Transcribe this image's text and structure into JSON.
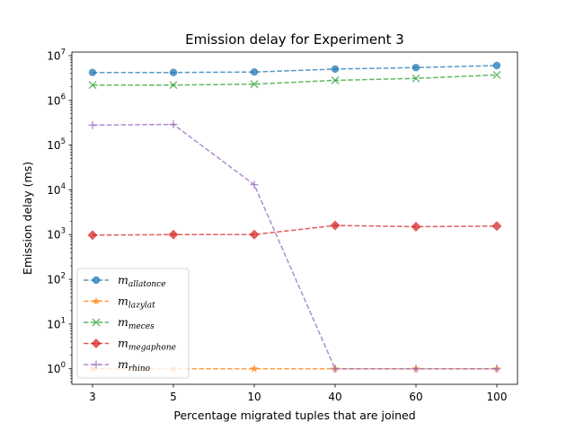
{
  "chart_data": {
    "type": "line",
    "title": "Emission delay for Experiment 3",
    "xlabel": "Percentage migrated tuples that are joined",
    "ylabel": "Emission delay (ms)",
    "categories": [
      "3",
      "5",
      "10",
      "40",
      "60",
      "100"
    ],
    "y_scale": "log",
    "ylim": [
      0.45,
      12000000
    ],
    "y_ticks": [
      {
        "value": 1,
        "base": "10",
        "exp": "0"
      },
      {
        "value": 10,
        "base": "10",
        "exp": "1"
      },
      {
        "value": 100,
        "base": "10",
        "exp": "2"
      },
      {
        "value": 1000,
        "base": "10",
        "exp": "3"
      },
      {
        "value": 10000,
        "base": "10",
        "exp": "4"
      },
      {
        "value": 100000,
        "base": "10",
        "exp": "5"
      },
      {
        "value": 1000000,
        "base": "10",
        "exp": "6"
      },
      {
        "value": 10000000,
        "base": "10",
        "exp": "7"
      }
    ],
    "grid": false,
    "legend_position": "lower-left",
    "series": [
      {
        "name": "m_allatonce",
        "label_main": "m",
        "label_sub": "allatonce",
        "color": "#1f77b4",
        "marker": "circle",
        "values": [
          4200000,
          4200000,
          4300000,
          5000000,
          5400000,
          6000000
        ]
      },
      {
        "name": "m_lazylat",
        "label_main": "m",
        "label_sub": "lazylat",
        "color": "#ff7f0e",
        "marker": "star",
        "values": [
          1,
          1,
          1,
          1,
          1,
          1
        ]
      },
      {
        "name": "m_meces",
        "label_main": "m",
        "label_sub": "meces",
        "color": "#2ca02c",
        "marker": "x",
        "values": [
          2200000,
          2200000,
          2300000,
          2800000,
          3100000,
          3700000
        ]
      },
      {
        "name": "m_megaphone",
        "label_main": "m",
        "label_sub": "megaphone",
        "color": "#d62728",
        "marker": "diamond",
        "values": [
          970,
          1000,
          1000,
          1600,
          1500,
          1550
        ]
      },
      {
        "name": "m_rhino",
        "label_main": "m",
        "label_sub": "rhino",
        "color": "#9467bd",
        "marker": "plus",
        "values": [
          280000,
          290000,
          13000,
          1,
          1,
          1
        ]
      }
    ]
  }
}
